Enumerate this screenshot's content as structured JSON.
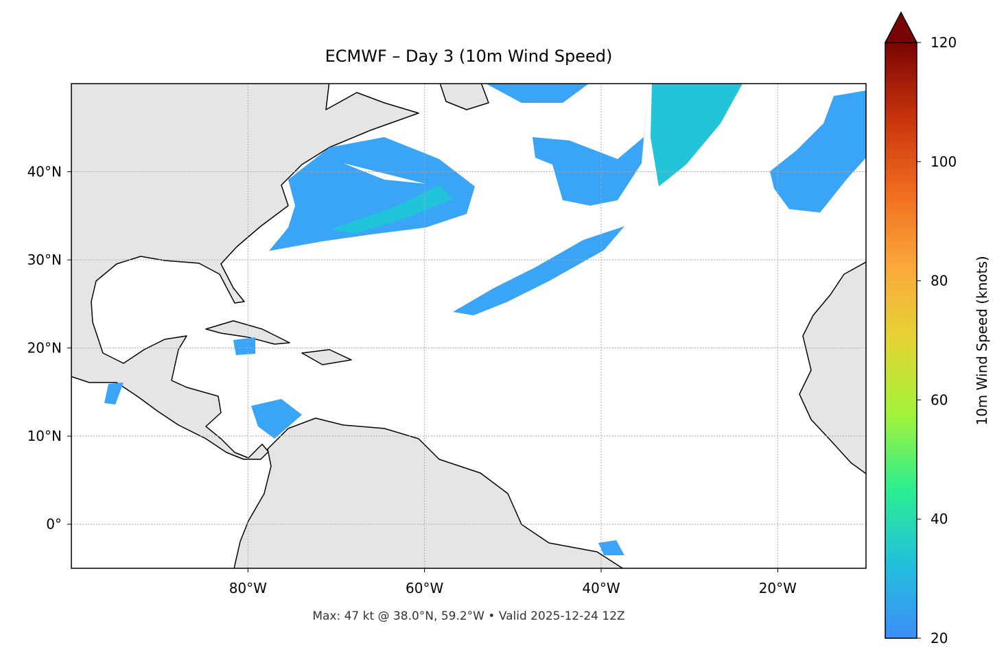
{
  "chart_data": {
    "type": "map",
    "title": "ECMWF – Day 3 (10m Wind Speed)",
    "footnote": "Max: 47 kt @ 38.0°N, 59.2°W • Valid 2025-12-24 12Z",
    "xlim": [
      -100,
      -10
    ],
    "ylim": [
      -5,
      50
    ],
    "xticks": [
      {
        "value": -80,
        "label": "80°W"
      },
      {
        "value": -60,
        "label": "60°W"
      },
      {
        "value": -40,
        "label": "40°W"
      },
      {
        "value": -20,
        "label": "20°W"
      }
    ],
    "yticks": [
      {
        "value": 0,
        "label": "0°"
      },
      {
        "value": 10,
        "label": "10°N"
      },
      {
        "value": 20,
        "label": "20°N"
      },
      {
        "value": 30,
        "label": "30°N"
      },
      {
        "value": 40,
        "label": "40°N"
      }
    ],
    "grid": true,
    "colorbar": {
      "label": "10m Wind Speed (knots)",
      "lim": [
        20,
        120
      ],
      "ticks": [
        20,
        40,
        60,
        80,
        100,
        120
      ],
      "colors": [
        "#3d8ef8",
        "#22c0dc",
        "#2bee90",
        "#a2f33a",
        "#e4d535",
        "#fba83a",
        "#f06b1e",
        "#c8330c",
        "#7a0403"
      ]
    }
  }
}
